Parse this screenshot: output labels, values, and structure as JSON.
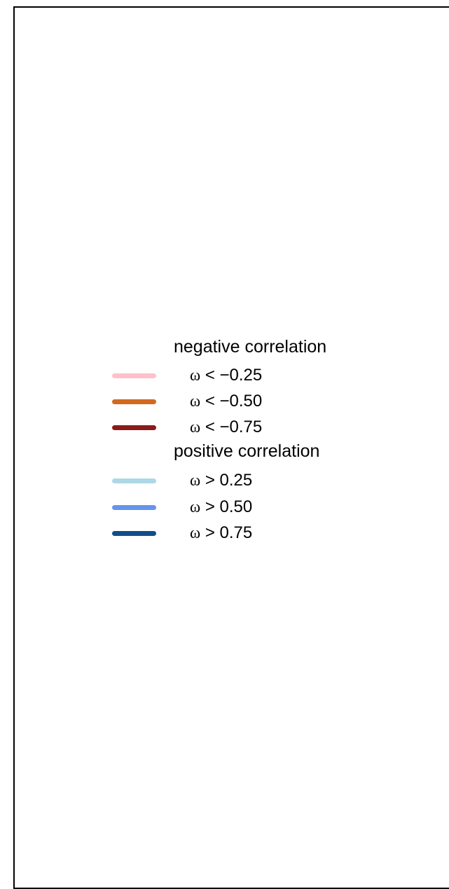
{
  "legend": {
    "groups": [
      {
        "heading": "negative correlation",
        "entries": [
          {
            "symbol": "ω",
            "label": "< −0.25",
            "color": "#ffc0cb"
          },
          {
            "symbol": "ω",
            "label": "< −0.50",
            "color": "#d2691e"
          },
          {
            "symbol": "ω",
            "label": "< −0.75",
            "color": "#8b1a1a"
          }
        ]
      },
      {
        "heading": "positive correlation",
        "entries": [
          {
            "symbol": "ω",
            "label": "> 0.25",
            "color": "#add8e6"
          },
          {
            "symbol": "ω",
            "label": "> 0.50",
            "color": "#6495ed"
          },
          {
            "symbol": "ω",
            "label": "> 0.75",
            "color": "#104e8b"
          }
        ]
      }
    ]
  }
}
